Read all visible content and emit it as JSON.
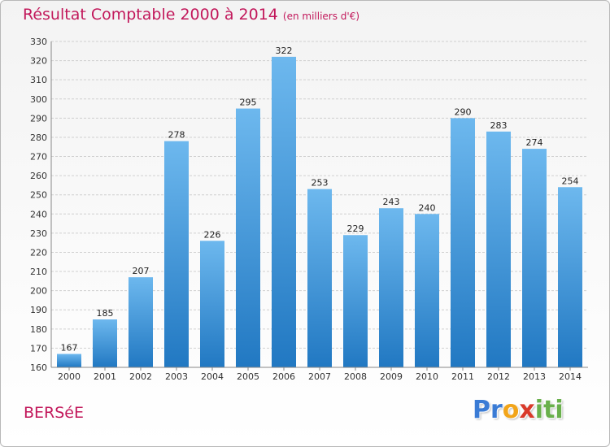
{
  "title": "Résultat Comptable 2000 à 2014",
  "subtitle": "(en milliers d'€)",
  "town": "BERSéE",
  "logo": [
    "P",
    "r",
    "o",
    "x",
    "i",
    "t",
    "i"
  ],
  "logo_colors": [
    "#3a7bd5",
    "#3a7bd5",
    "#f2a51a",
    "#d93a2b",
    "#6ab04c",
    "#6ab04c",
    "#6ab04c"
  ],
  "colors": {
    "bar_light": "#6db8ee",
    "bar_dark": "#2178c2",
    "grid": "#d0d0d0",
    "title": "#c2185b"
  },
  "chart_data": {
    "type": "bar",
    "title": "Résultat Comptable 2000 à 2014",
    "categories": [
      "2000",
      "2001",
      "2002",
      "2003",
      "2004",
      "2005",
      "2006",
      "2007",
      "2008",
      "2009",
      "2010",
      "2011",
      "2012",
      "2013",
      "2014"
    ],
    "values": [
      167,
      185,
      207,
      278,
      226,
      295,
      322,
      253,
      229,
      243,
      240,
      290,
      283,
      274,
      254
    ],
    "ylim": [
      160,
      330
    ],
    "yticks": [
      160,
      170,
      180,
      190,
      200,
      210,
      220,
      230,
      240,
      250,
      260,
      270,
      280,
      290,
      300,
      310,
      320,
      330
    ],
    "grid": true
  }
}
